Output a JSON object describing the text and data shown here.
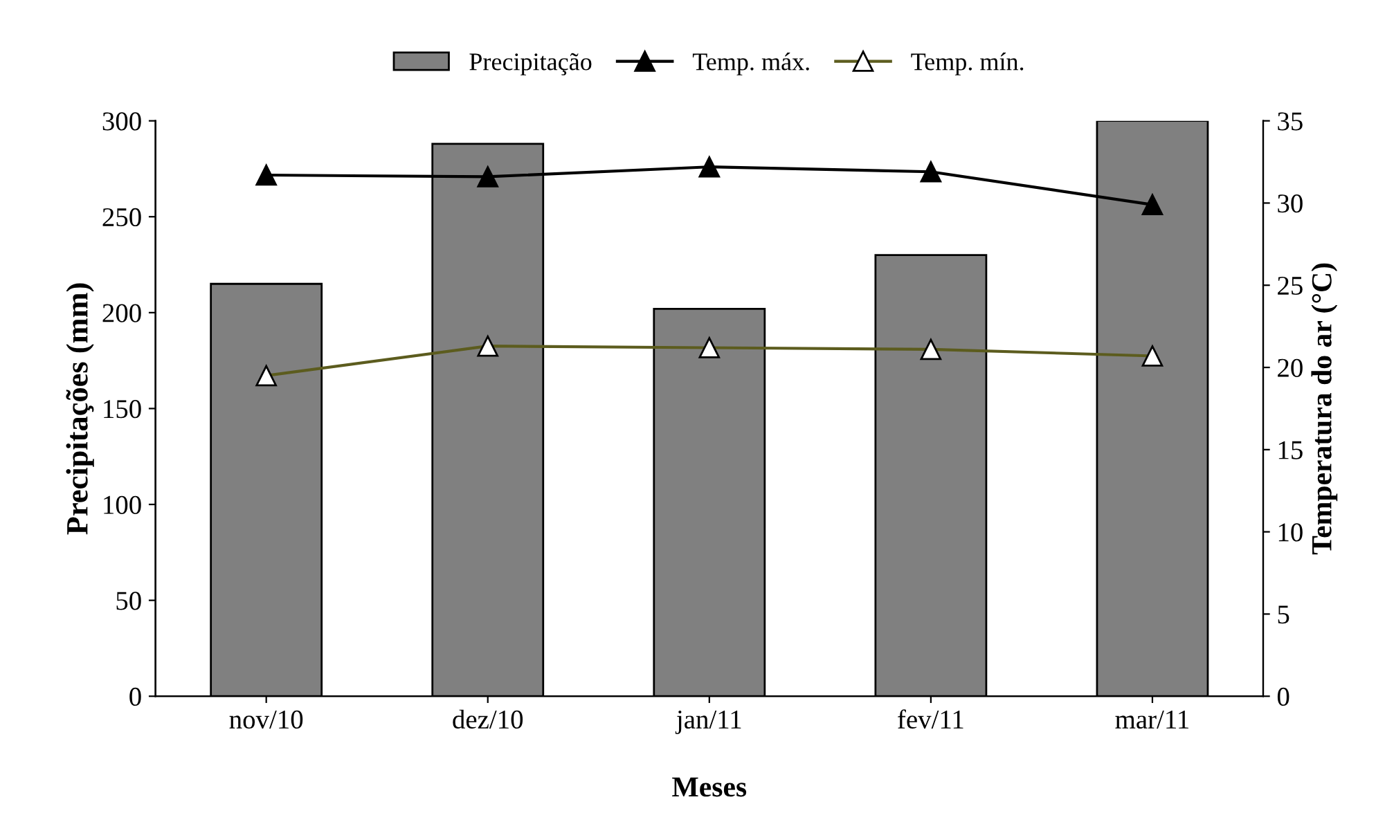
{
  "chart_data": {
    "type": "bar",
    "xlabel": "Meses",
    "ylabel": "Precipitações (mm)",
    "y2label": "Temperatura do ar (°C)",
    "categories": [
      "nov/10",
      "dez/10",
      "jan/11",
      "fev/11",
      "mar/11"
    ],
    "series": [
      {
        "name": "Precipitação",
        "color": "#808080",
        "values": [
          215,
          288,
          202,
          230,
          300
        ]
      },
      {
        "name": "Temp. máx.",
        "type": "line",
        "axis": "y2",
        "color": "#000000",
        "marker": "triangle",
        "values": [
          31.7,
          31.6,
          32.2,
          31.9,
          29.9
        ]
      },
      {
        "name": "Temp. mín.",
        "type": "line",
        "axis": "y2",
        "color": "#5c5c1e",
        "marker": "triangle",
        "values": [
          19.5,
          21.3,
          21.2,
          21.1,
          20.7
        ]
      }
    ],
    "ylim": [
      0,
      300
    ],
    "yticks": [
      0,
      50,
      100,
      150,
      200,
      250,
      300
    ],
    "y2lim": [
      0,
      35
    ],
    "y2ticks": [
      0,
      5,
      10,
      15,
      20,
      25,
      30,
      35
    ],
    "grid": false,
    "legend": "top"
  }
}
